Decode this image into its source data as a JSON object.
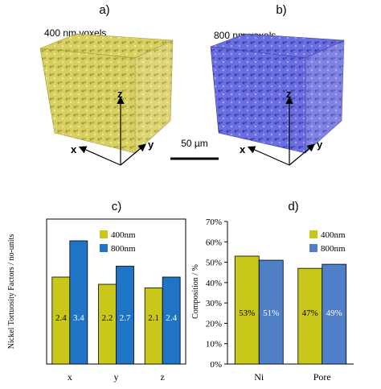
{
  "panels": {
    "a": {
      "label": "a)",
      "voxel_label": "400 nm voxels",
      "cube_color": "#dcd36a",
      "cube_dark": "#b9b046"
    },
    "b": {
      "label": "b)",
      "voxel_label": "800 nm voxels",
      "cube_color": "#6b6fe0",
      "cube_dark": "#4447b8"
    },
    "axes": {
      "x": "x",
      "y": "y",
      "z": "z"
    },
    "scale_bar_label": "50 µm"
  },
  "chart_data": [
    {
      "type": "bar",
      "panel_label": "c)",
      "categories": [
        "x",
        "y",
        "z"
      ],
      "series": [
        {
          "name": "400nm",
          "values": [
            2.4,
            2.2,
            2.1
          ],
          "value_labels": [
            "2.4",
            "2.2",
            "2.1"
          ],
          "color": "#c9c81a"
        },
        {
          "name": "800nm",
          "values": [
            3.4,
            2.7,
            2.4
          ],
          "value_labels": [
            "3.4",
            "2.7",
            "2.4"
          ],
          "color": "#1f74c6"
        }
      ],
      "ylabel": "Nickel Tortuosity Factors / no-units",
      "ylim": [
        0,
        4
      ],
      "grid": false,
      "legend": "top-left"
    },
    {
      "type": "bar",
      "panel_label": "d)",
      "categories": [
        "Ni",
        "Pore"
      ],
      "series": [
        {
          "name": "400nm",
          "values": [
            53,
            47
          ],
          "value_labels": [
            "53%",
            "47%"
          ],
          "color": "#c9c81a"
        },
        {
          "name": "800nm",
          "values": [
            51,
            49
          ],
          "value_labels": [
            "51%",
            "49%"
          ],
          "color": "#4f7fc6"
        }
      ],
      "ylabel": "Composition / %",
      "yticks": [
        "0%",
        "10%",
        "20%",
        "30%",
        "40%",
        "50%",
        "60%",
        "70%"
      ],
      "ylim": [
        0,
        70
      ],
      "grid": false,
      "legend": "top-right"
    }
  ]
}
